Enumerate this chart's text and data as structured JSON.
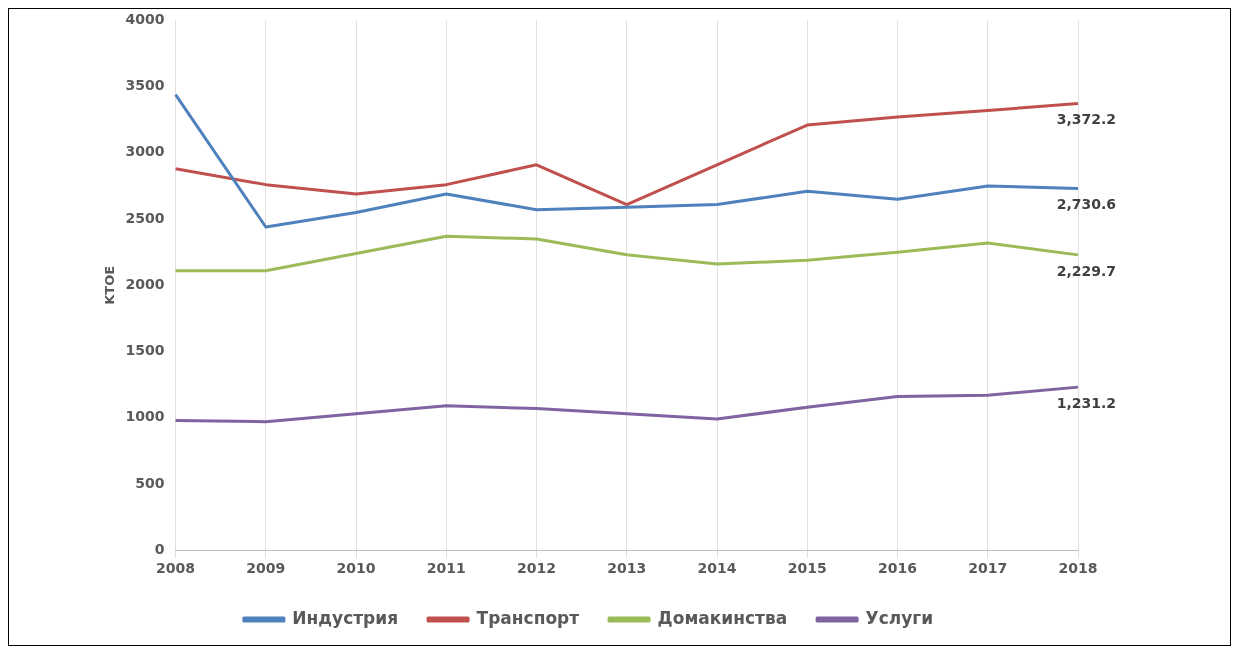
{
  "chart_data": {
    "type": "line",
    "ylabel": "KTOE",
    "categories": [
      "2008",
      "2009",
      "2010",
      "2011",
      "2012",
      "2013",
      "2014",
      "2015",
      "2016",
      "2017",
      "2018"
    ],
    "series": [
      {
        "name": "Индустрия",
        "color": "#4f81bd",
        "values": [
          3440,
          2440,
          2550,
          2690,
          2570,
          2590,
          2610,
          2710,
          2650,
          2750,
          2730.6
        ],
        "value_labels": [
          null,
          null,
          null,
          null,
          null,
          null,
          null,
          null,
          null,
          null,
          "2,730.6"
        ]
      },
      {
        "name": "Транспорт",
        "color": "#c0504d",
        "values": [
          2880,
          2760,
          2690,
          2760,
          2910,
          2610,
          2910,
          3210,
          3270,
          3320,
          3372.2
        ],
        "value_labels": [
          null,
          null,
          null,
          null,
          null,
          null,
          null,
          null,
          null,
          null,
          "3,372.2"
        ]
      },
      {
        "name": "Домакинства",
        "color": "#9bbb59",
        "values": [
          2110,
          2110,
          2240,
          2370,
          2350,
          2230,
          2160,
          2190,
          2250,
          2320,
          2229.7
        ],
        "value_labels": [
          null,
          null,
          null,
          null,
          null,
          null,
          null,
          null,
          null,
          null,
          "2,229.7"
        ]
      },
      {
        "name": "Услуги",
        "color": "#8064a2",
        "values": [
          980,
          970,
          1030,
          1090,
          1070,
          1030,
          990,
          1080,
          1160,
          1170,
          1231.2
        ],
        "value_labels": [
          null,
          null,
          null,
          null,
          null,
          null,
          null,
          null,
          null,
          null,
          "1,231.2"
        ]
      }
    ],
    "ylim": [
      0,
      4000
    ],
    "yticks": [
      0,
      500,
      1000,
      1500,
      2000,
      2500,
      3000,
      3500,
      4000
    ],
    "grid": "x",
    "legend": "bottom",
    "marker": "none",
    "line_style": "solid"
  }
}
